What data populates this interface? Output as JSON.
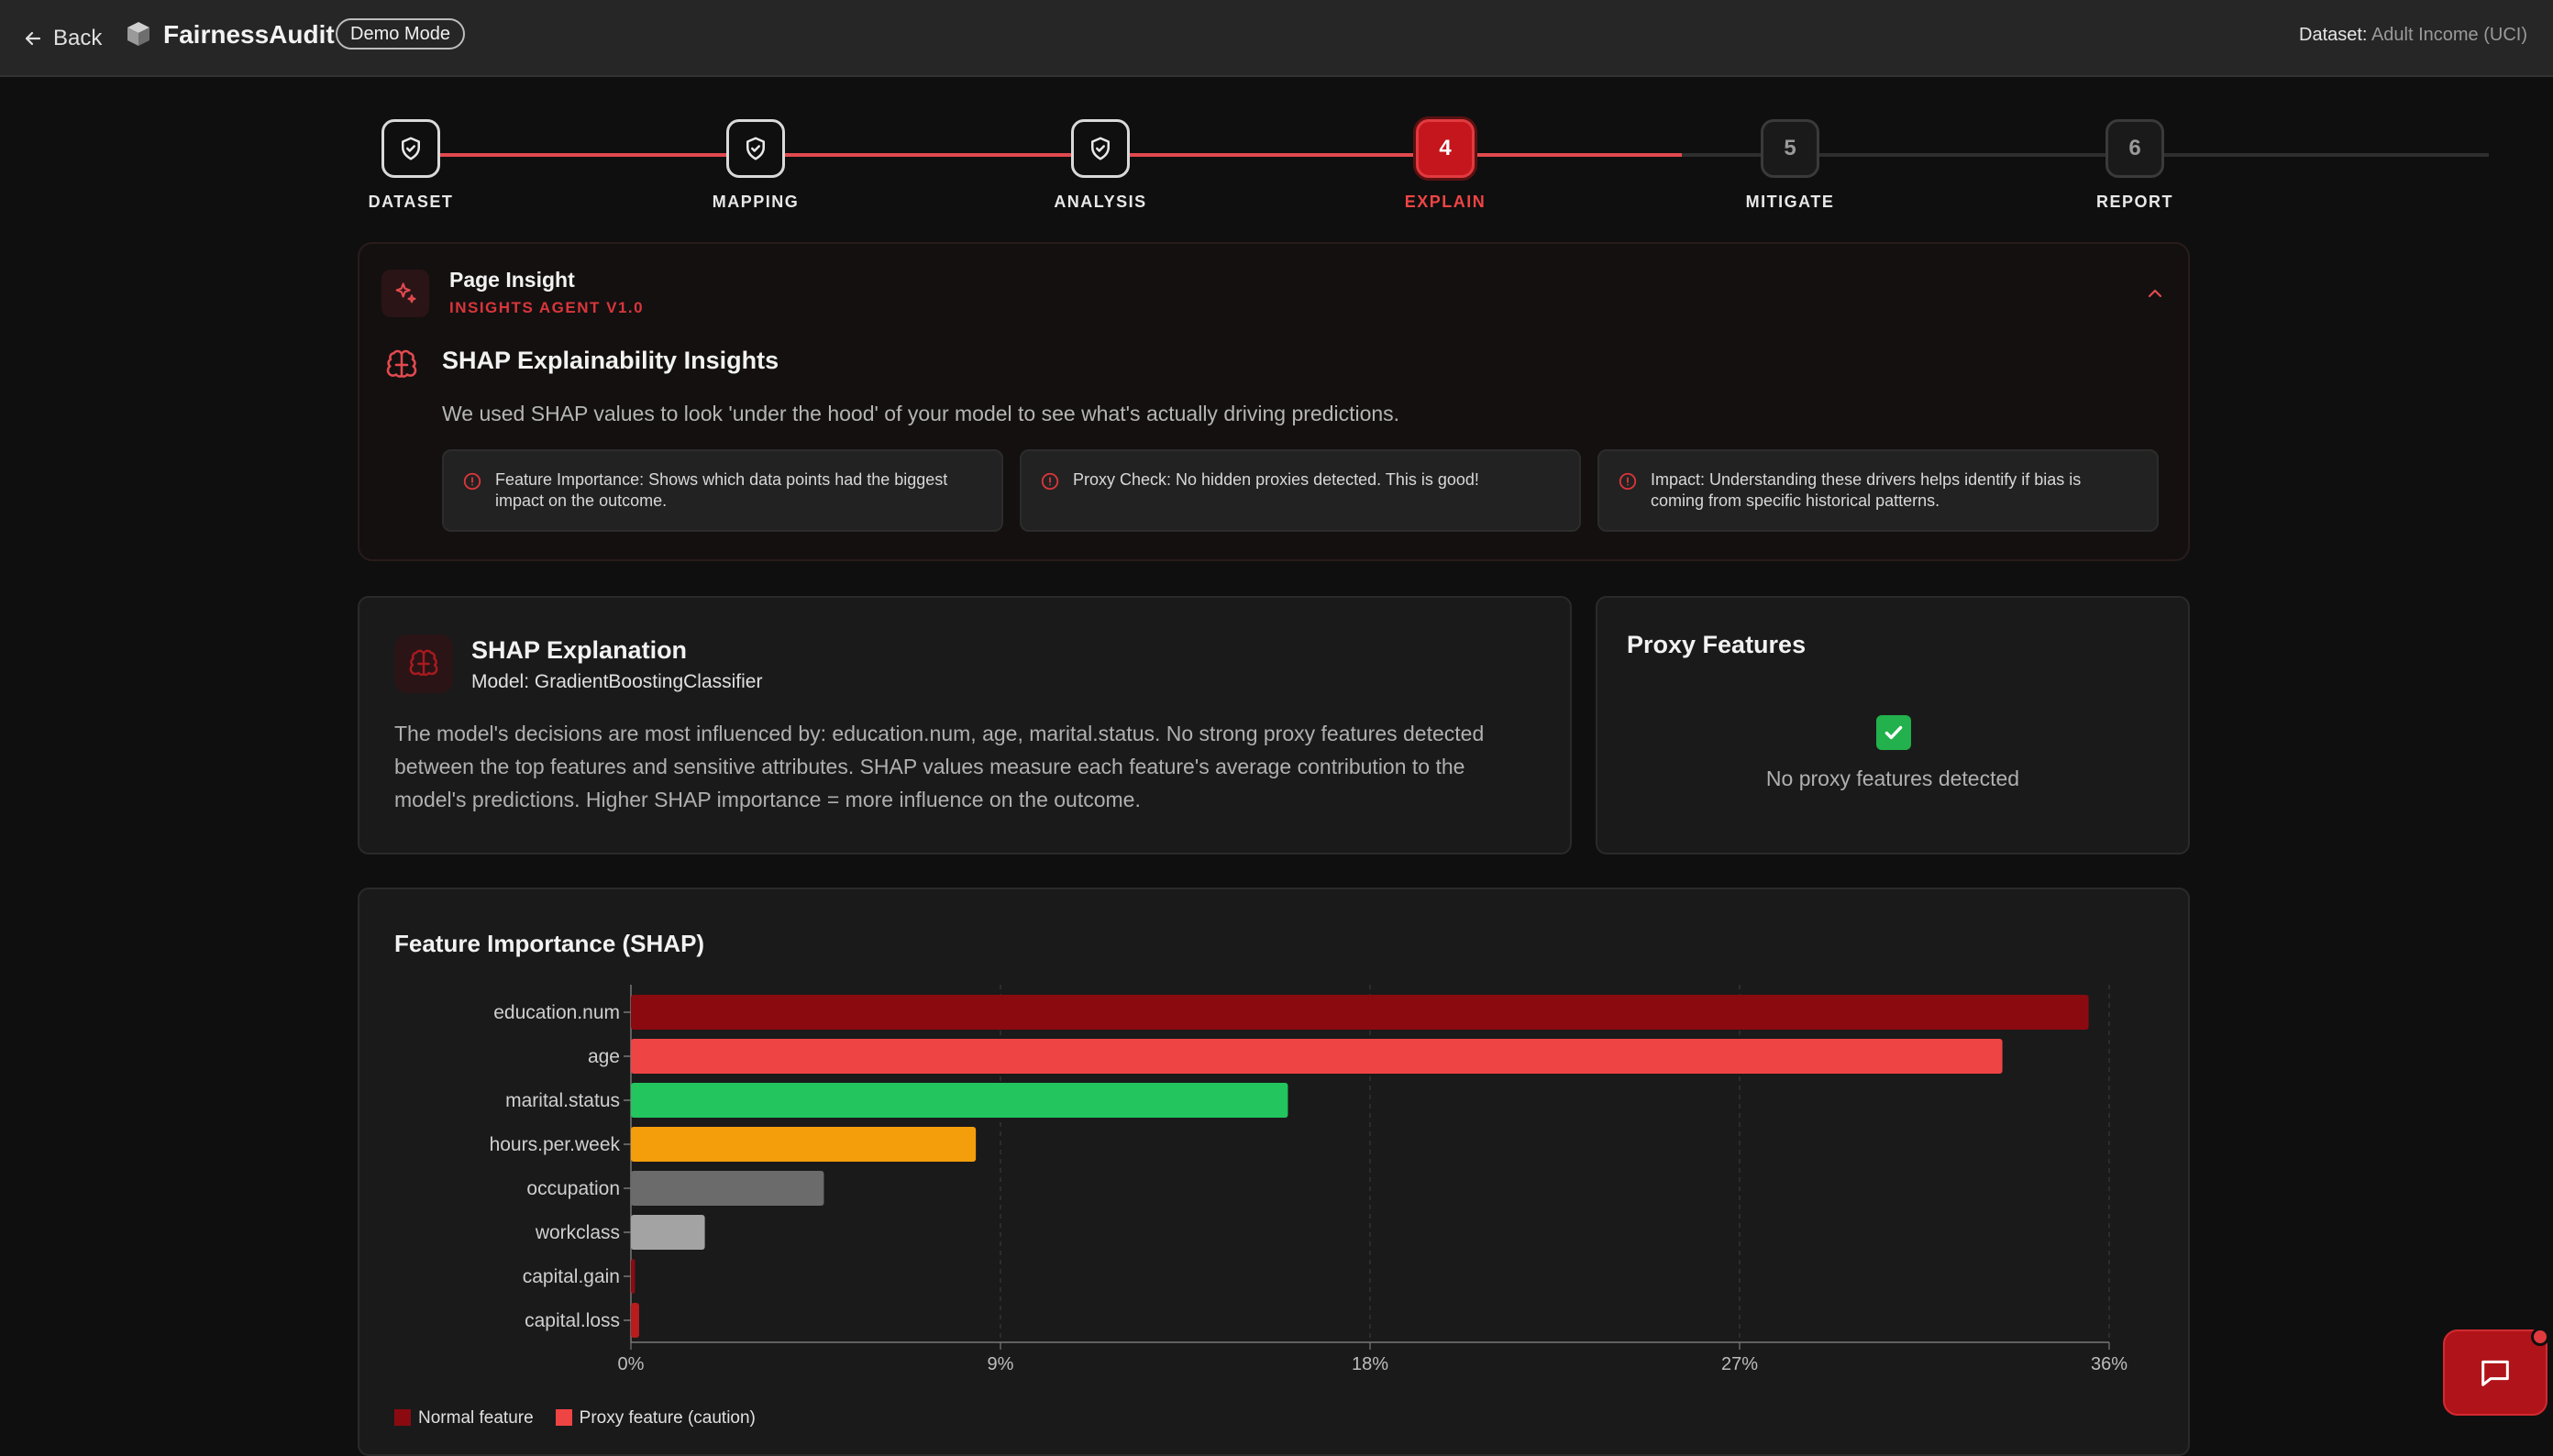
{
  "topbar": {
    "back_label": "Back",
    "app_name": "FairnessAudit",
    "mode_badge": "Demo Mode",
    "dataset_label": "Dataset:",
    "dataset_value": "Adult Income (UCI)"
  },
  "stepper": {
    "steps": [
      {
        "label": "DATASET",
        "state": "done",
        "icon": "shield-check-icon"
      },
      {
        "label": "MAPPING",
        "state": "done",
        "icon": "shield-check-icon"
      },
      {
        "label": "ANALYSIS",
        "state": "done",
        "icon": "shield-check-icon"
      },
      {
        "label": "EXPLAIN",
        "state": "active",
        "number": "4"
      },
      {
        "label": "MITIGATE",
        "state": "todo",
        "number": "5"
      },
      {
        "label": "REPORT",
        "state": "todo",
        "number": "6"
      }
    ]
  },
  "insight": {
    "title": "Page Insight",
    "subtitle": "INSIGHTS AGENT V1.0",
    "heading": "SHAP Explainability Insights",
    "description": "We used SHAP values to look 'under the hood' of your model to see what's actually driving predictions.",
    "cards": [
      "Feature Importance: Shows which data points had the biggest impact on the outcome.",
      "Proxy Check: No hidden proxies detected. This is good!",
      "Impact: Understanding these drivers helps identify if bias is coming from specific historical patterns."
    ]
  },
  "explanation": {
    "title": "SHAP Explanation",
    "model": "Model: GradientBoostingClassifier",
    "text": "The model's decisions are most influenced by: education.num, age, marital.status. No strong proxy features detected between the top features and sensitive attributes. SHAP values measure each feature's average contribution to the model's predictions. Higher SHAP importance = more influence on the outcome."
  },
  "proxy": {
    "title": "Proxy Features",
    "empty_text": "No proxy features detected"
  },
  "chart_data": {
    "type": "bar",
    "orientation": "horizontal",
    "title": "Feature Importance (SHAP)",
    "categories": [
      "education.num",
      "age",
      "marital.status",
      "hours.per.week",
      "occupation",
      "workclass",
      "capital.gain",
      "capital.loss"
    ],
    "values": [
      35.5,
      33.4,
      16.0,
      8.4,
      4.7,
      1.8,
      0.1,
      0.2
    ],
    "colors": [
      "#8b0a10",
      "#ef4444",
      "#22c55e",
      "#f59e0b",
      "#6b6b6b",
      "#a3a3a3",
      "#8b0a10",
      "#b91c1c"
    ],
    "xticks": [
      "0%",
      "9%",
      "18%",
      "27%",
      "36%"
    ],
    "xlim": [
      0,
      36
    ],
    "grid": true,
    "legend": [
      {
        "label": "Normal feature",
        "color": "#8b0a10"
      },
      {
        "label": "Proxy feature (caution)",
        "color": "#ef4444"
      }
    ],
    "legend_position": "bottom-left"
  },
  "colors": {
    "accent": "#ef4444",
    "accent_dark": "#c4161c",
    "background": "#0f0f0f",
    "panel": "#1a1a1a"
  }
}
